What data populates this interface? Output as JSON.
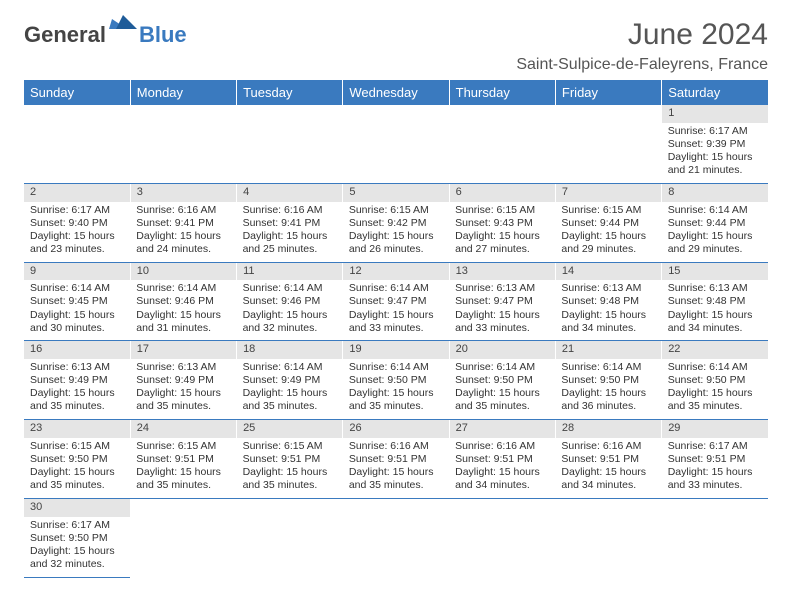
{
  "logo": {
    "text1": "General",
    "text2": "Blue"
  },
  "title": "June 2024",
  "location": "Saint-Sulpice-de-Faleyrens, France",
  "colors": {
    "header_bg": "#3a7abf",
    "header_fg": "#ffffff",
    "daynum_bg": "#e5e5e5",
    "cell_border": "#3a7abf",
    "page_bg": "#ffffff",
    "text": "#333333"
  },
  "dayHeaders": [
    "Sunday",
    "Monday",
    "Tuesday",
    "Wednesday",
    "Thursday",
    "Friday",
    "Saturday"
  ],
  "weeks": [
    {
      "nums": [
        "",
        "",
        "",
        "",
        "",
        "",
        "1"
      ],
      "cells": [
        "",
        "",
        "",
        "",
        "",
        "",
        "Sunrise: 6:17 AM\nSunset: 9:39 PM\nDaylight: 15 hours and 21 minutes."
      ]
    },
    {
      "nums": [
        "2",
        "3",
        "4",
        "5",
        "6",
        "7",
        "8"
      ],
      "cells": [
        "Sunrise: 6:17 AM\nSunset: 9:40 PM\nDaylight: 15 hours and 23 minutes.",
        "Sunrise: 6:16 AM\nSunset: 9:41 PM\nDaylight: 15 hours and 24 minutes.",
        "Sunrise: 6:16 AM\nSunset: 9:41 PM\nDaylight: 15 hours and 25 minutes.",
        "Sunrise: 6:15 AM\nSunset: 9:42 PM\nDaylight: 15 hours and 26 minutes.",
        "Sunrise: 6:15 AM\nSunset: 9:43 PM\nDaylight: 15 hours and 27 minutes.",
        "Sunrise: 6:15 AM\nSunset: 9:44 PM\nDaylight: 15 hours and 29 minutes.",
        "Sunrise: 6:14 AM\nSunset: 9:44 PM\nDaylight: 15 hours and 29 minutes."
      ]
    },
    {
      "nums": [
        "9",
        "10",
        "11",
        "12",
        "13",
        "14",
        "15"
      ],
      "cells": [
        "Sunrise: 6:14 AM\nSunset: 9:45 PM\nDaylight: 15 hours and 30 minutes.",
        "Sunrise: 6:14 AM\nSunset: 9:46 PM\nDaylight: 15 hours and 31 minutes.",
        "Sunrise: 6:14 AM\nSunset: 9:46 PM\nDaylight: 15 hours and 32 minutes.",
        "Sunrise: 6:14 AM\nSunset: 9:47 PM\nDaylight: 15 hours and 33 minutes.",
        "Sunrise: 6:13 AM\nSunset: 9:47 PM\nDaylight: 15 hours and 33 minutes.",
        "Sunrise: 6:13 AM\nSunset: 9:48 PM\nDaylight: 15 hours and 34 minutes.",
        "Sunrise: 6:13 AM\nSunset: 9:48 PM\nDaylight: 15 hours and 34 minutes."
      ]
    },
    {
      "nums": [
        "16",
        "17",
        "18",
        "19",
        "20",
        "21",
        "22"
      ],
      "cells": [
        "Sunrise: 6:13 AM\nSunset: 9:49 PM\nDaylight: 15 hours and 35 minutes.",
        "Sunrise: 6:13 AM\nSunset: 9:49 PM\nDaylight: 15 hours and 35 minutes.",
        "Sunrise: 6:14 AM\nSunset: 9:49 PM\nDaylight: 15 hours and 35 minutes.",
        "Sunrise: 6:14 AM\nSunset: 9:50 PM\nDaylight: 15 hours and 35 minutes.",
        "Sunrise: 6:14 AM\nSunset: 9:50 PM\nDaylight: 15 hours and 35 minutes.",
        "Sunrise: 6:14 AM\nSunset: 9:50 PM\nDaylight: 15 hours and 36 minutes.",
        "Sunrise: 6:14 AM\nSunset: 9:50 PM\nDaylight: 15 hours and 35 minutes."
      ]
    },
    {
      "nums": [
        "23",
        "24",
        "25",
        "26",
        "27",
        "28",
        "29"
      ],
      "cells": [
        "Sunrise: 6:15 AM\nSunset: 9:50 PM\nDaylight: 15 hours and 35 minutes.",
        "Sunrise: 6:15 AM\nSunset: 9:51 PM\nDaylight: 15 hours and 35 minutes.",
        "Sunrise: 6:15 AM\nSunset: 9:51 PM\nDaylight: 15 hours and 35 minutes.",
        "Sunrise: 6:16 AM\nSunset: 9:51 PM\nDaylight: 15 hours and 35 minutes.",
        "Sunrise: 6:16 AM\nSunset: 9:51 PM\nDaylight: 15 hours and 34 minutes.",
        "Sunrise: 6:16 AM\nSunset: 9:51 PM\nDaylight: 15 hours and 34 minutes.",
        "Sunrise: 6:17 AM\nSunset: 9:51 PM\nDaylight: 15 hours and 33 minutes."
      ]
    },
    {
      "nums": [
        "30",
        "",
        "",
        "",
        "",
        "",
        ""
      ],
      "cells": [
        "Sunrise: 6:17 AM\nSunset: 9:50 PM\nDaylight: 15 hours and 32 minutes.",
        "",
        "",
        "",
        "",
        "",
        ""
      ]
    }
  ]
}
